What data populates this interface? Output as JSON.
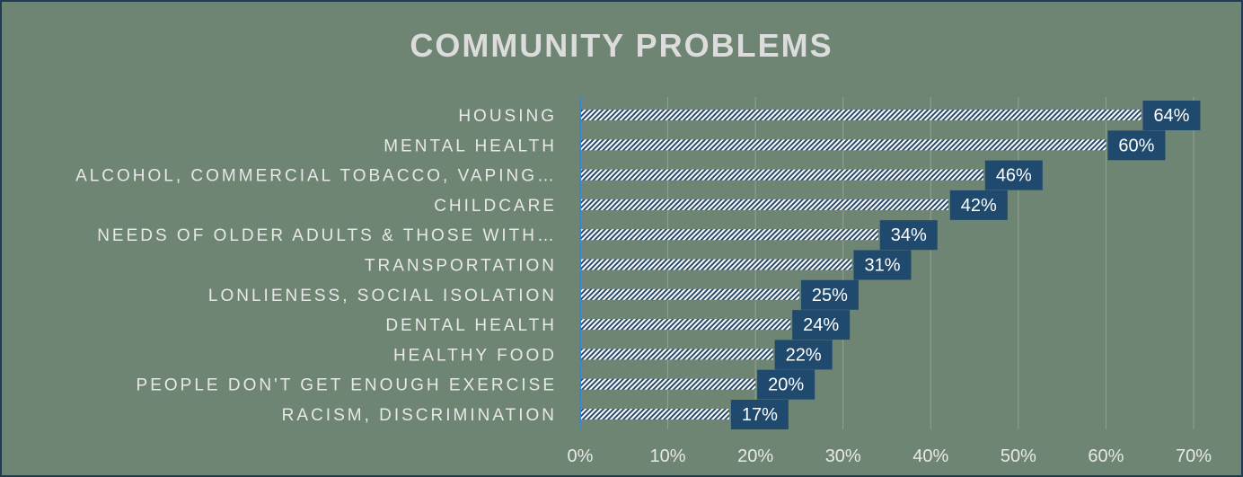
{
  "chart_data": {
    "type": "bar",
    "orientation": "horizontal",
    "title": "COMMUNITY PROBLEMS",
    "categories": [
      "HOUSING",
      "MENTAL HEALTH",
      "ALCOHOL, COMMERCIAL TOBACCO, VAPING…",
      "CHILDCARE",
      "NEEDS OF OLDER ADULTS & THOSE WITH…",
      "TRANSPORTATION",
      "LONLIENESS, SOCIAL ISOLATION",
      "DENTAL HEALTH",
      "HEALTHY FOOD",
      "PEOPLE DON'T GET ENOUGH EXERCISE",
      "RACISM, DISCRIMINATION"
    ],
    "values": [
      64,
      60,
      46,
      42,
      34,
      31,
      25,
      24,
      22,
      20,
      17
    ],
    "data_labels": [
      "64%",
      "60%",
      "46%",
      "42%",
      "34%",
      "31%",
      "25%",
      "24%",
      "22%",
      "20%",
      "17%"
    ],
    "xlim": [
      0,
      70
    ],
    "x_ticks": [
      "0%",
      "10%",
      "20%",
      "30%",
      "40%",
      "50%",
      "60%",
      "70%"
    ],
    "grid": true,
    "legend": "none",
    "colors": {
      "background": "#6f8573",
      "border": "#1f3b57",
      "bar_hatch": "#ffffff",
      "bar_stripe": "#2b4a6a",
      "label_box": "#1f4a6e",
      "axis_line": "#3a86d4",
      "grid": "#8fa295"
    }
  }
}
